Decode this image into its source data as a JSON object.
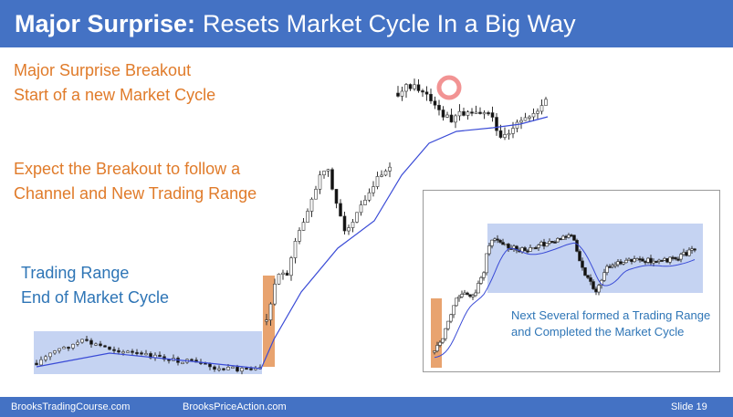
{
  "slide": {
    "title_bold": "Major Surprise:",
    "title_rest": "Resets Market Cycle In a Big Way",
    "labels": {
      "breakout_line1": "Major Surprise Breakout",
      "breakout_line2": "Start of a new Market Cycle",
      "expect_line1": "Expect the Breakout to follow a",
      "expect_line2": "Channel and New Trading Range",
      "range_line1": "Trading Range",
      "range_line2": "End of Market Cycle"
    },
    "inset_note": "Next Several formed a Trading Range and Completed the Market Cycle",
    "footer": {
      "left": "BrooksTradingCourse.com",
      "middle": "BrooksPriceAction.com",
      "slide": "Slide  19"
    }
  },
  "colors": {
    "title_bar": "#4472c4",
    "orange_text": "#e07b2a",
    "blue_text": "#2e75b6",
    "range_box": "#c5d3f2",
    "breakout_box": "#e8a36f",
    "moving_average": "#3a4bd6",
    "circle": "#f08080"
  }
}
